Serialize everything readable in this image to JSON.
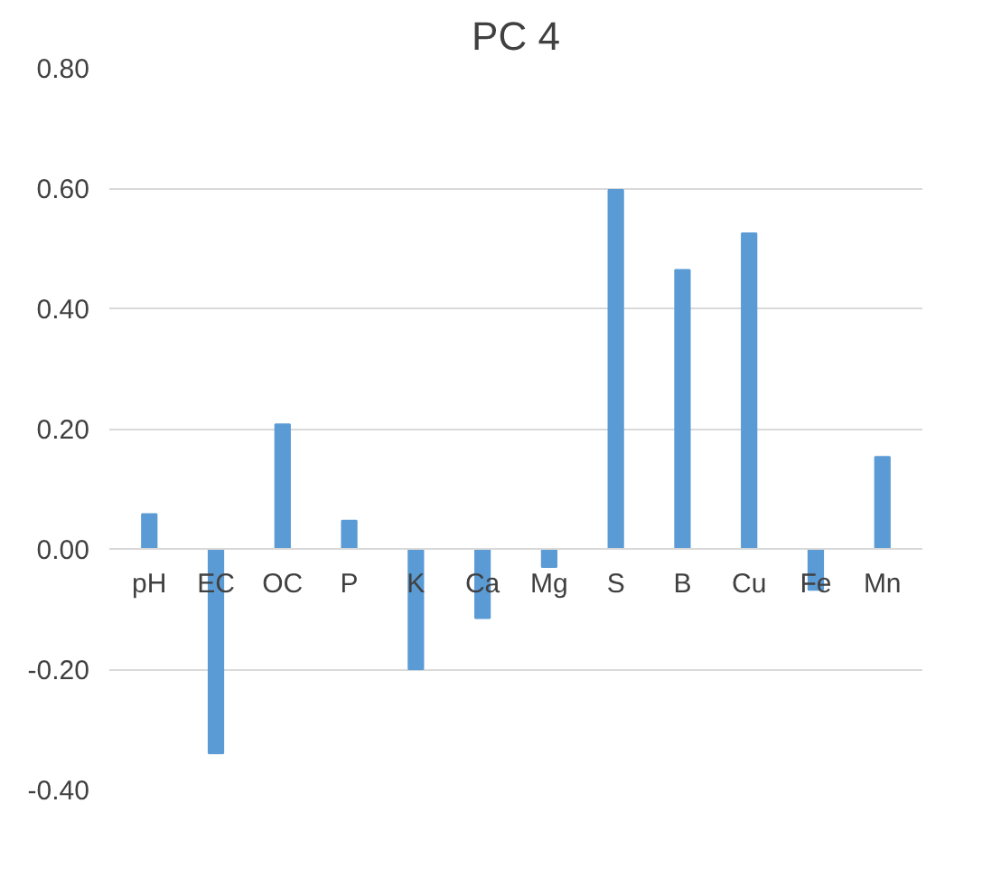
{
  "chart_data": {
    "type": "bar",
    "title": "PC 4",
    "categories": [
      "pH",
      "EC",
      "OC",
      "P",
      "K",
      "Ca",
      "Mg",
      "S",
      "B",
      "Cu",
      "Fe",
      "Mn"
    ],
    "values": [
      0.058,
      -0.34,
      0.207,
      0.047,
      -0.2,
      -0.115,
      -0.03,
      0.597,
      0.464,
      0.525,
      -0.068,
      0.153
    ],
    "color": "#5b9bd5",
    "ylim": [
      -0.4,
      0.8
    ],
    "yticks": [
      {
        "value": -0.4,
        "label": "-0.40"
      },
      {
        "value": -0.2,
        "label": "-0.20"
      },
      {
        "value": 0,
        "label": "0.00"
      },
      {
        "value": 0.2,
        "label": "0.20"
      },
      {
        "value": 0.4,
        "label": "0.40"
      },
      {
        "value": 0.6,
        "label": "0.60"
      },
      {
        "value": 0.8,
        "label": "0.80"
      }
    ],
    "grid": "y"
  }
}
